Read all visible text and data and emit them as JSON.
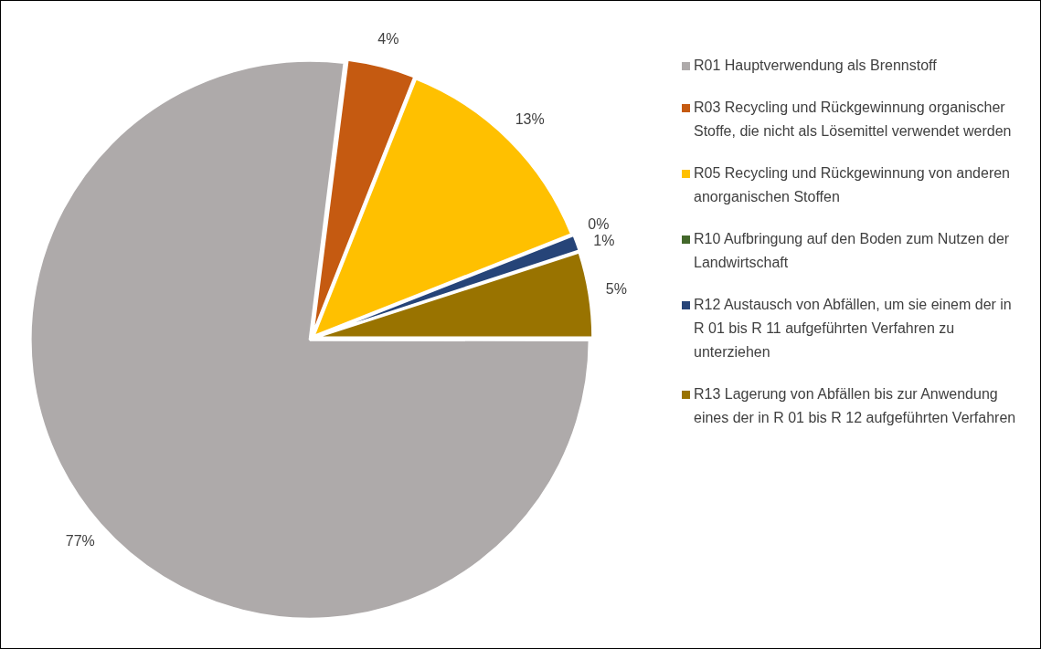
{
  "chart_data": {
    "type": "pie",
    "categories": [
      "R01 Hauptverwendung als Brennstoff",
      "R03 Recycling und Rückgewinnung organischer Stoffe, die nicht als Lösemittel verwendet werden",
      "R05 Recycling und Rückgewinnung von anderen anorganischen Stoffen",
      "R10 Aufbringung auf den Boden zum Nutzen der Landwirtschaft",
      "R12 Austausch von Abfällen, um sie einem der in R 01 bis R 11 aufgeführten Verfahren zu unterziehen",
      "R13 Lagerung von Abfällen bis zur Anwendung eines der in R 01 bis R 12 aufgeführten Verfahren"
    ],
    "values": [
      77,
      4,
      13,
      0,
      1,
      5
    ],
    "colors": [
      "#aeaaaa",
      "#c55a11",
      "#ffc000",
      "#43682b",
      "#264478",
      "#997300"
    ],
    "value_labels": [
      "77%",
      "4%",
      "13%",
      "0%",
      "1%",
      "5%"
    ],
    "legend": "right"
  }
}
